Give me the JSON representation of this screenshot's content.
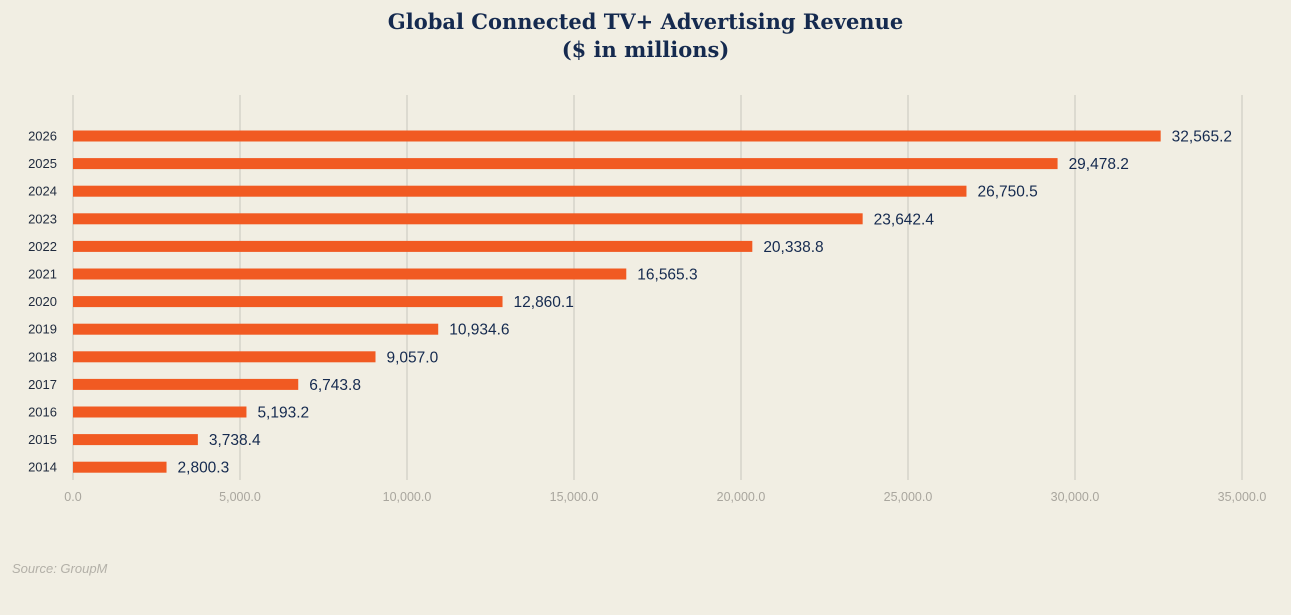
{
  "chart_data": {
    "type": "bar",
    "orientation": "horizontal",
    "title": "Global Connected TV+ Advertising Revenue",
    "subtitle": "($ in millions)",
    "categories": [
      "2026",
      "2025",
      "2024",
      "2023",
      "2022",
      "2021",
      "2020",
      "2019",
      "2018",
      "2017",
      "2016",
      "2015",
      "2014"
    ],
    "values": [
      32565.2,
      29478.2,
      26750.5,
      23642.4,
      20338.8,
      16565.3,
      12860.1,
      10934.6,
      9057.0,
      6743.8,
      5193.2,
      3738.4,
      2800.3
    ],
    "value_labels": [
      "32,565.2",
      "29,478.2",
      "26,750.5",
      "23,642.4",
      "20,338.8",
      "16,565.3",
      "12,860.1",
      "10,934.6",
      "9,057.0",
      "6,743.8",
      "5,193.2",
      "3,738.4",
      "2,800.3"
    ],
    "xlim": [
      0,
      35000
    ],
    "x_ticks": [
      0,
      5000,
      10000,
      15000,
      20000,
      25000,
      30000,
      35000
    ],
    "x_tick_labels": [
      "0.0",
      "5,000.0",
      "10,000.0",
      "15,000.0",
      "20,000.0",
      "25,000.0",
      "30,000.0",
      "35,000.0"
    ],
    "grid": "vertical",
    "legend": "none"
  },
  "colors": {
    "background": "#f1eee3",
    "bar": "#f15a22",
    "title": "#152a4f",
    "value_label": "#152a4f",
    "grid": "#d6d3ca",
    "tick_label": "#a9a69e",
    "source": "#b3b0a8"
  },
  "source": "Source: GroupM"
}
